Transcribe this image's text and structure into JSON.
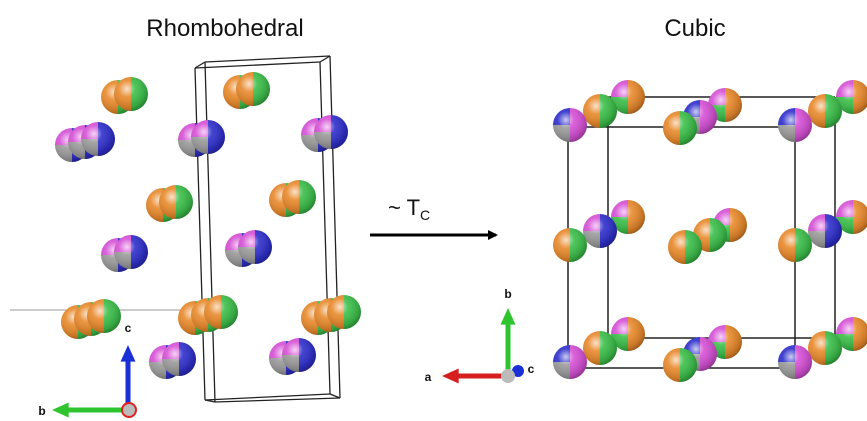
{
  "titles": {
    "left": "Rhombohedral",
    "right": "Cubic"
  },
  "transition": {
    "label": "~ T",
    "subscript": "C"
  },
  "axes_left": {
    "c": "c",
    "b": "b"
  },
  "axes_right": {
    "a": "a",
    "b": "b",
    "c": "c"
  }
}
